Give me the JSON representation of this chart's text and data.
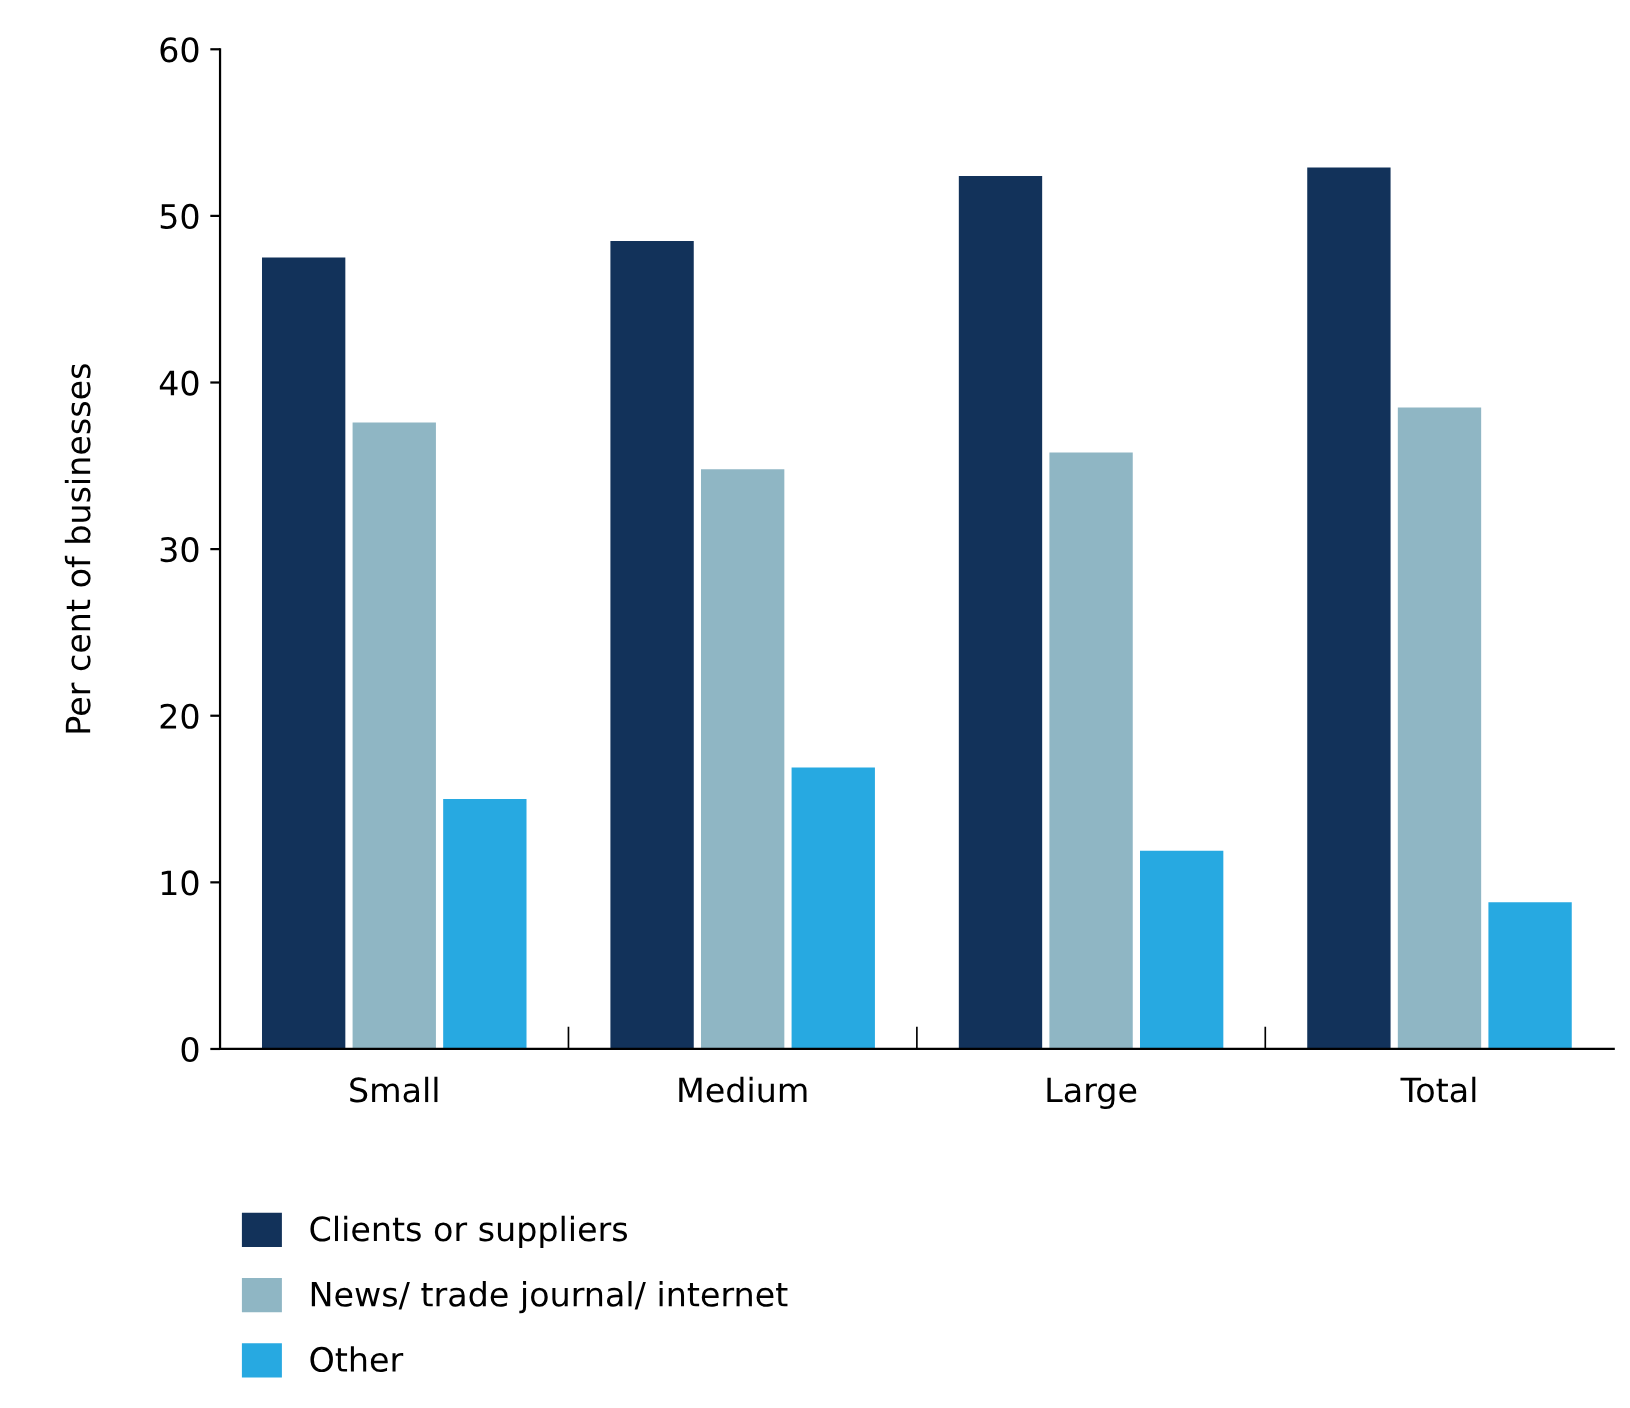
{
  "chart_data": {
    "type": "bar",
    "ylabel": "Per cent of businesses",
    "categories": [
      "Small",
      "Medium",
      "Large",
      "Total"
    ],
    "series": [
      {
        "name": "Clients or suppliers",
        "color": "#12325a",
        "values": [
          47.5,
          48.5,
          52.4,
          52.9
        ]
      },
      {
        "name": "News/ trade journal/ internet",
        "color": "#8fb6c4",
        "values": [
          37.6,
          34.8,
          35.8,
          38.5
        ]
      },
      {
        "name": "Other",
        "color": "#27a9e1",
        "values": [
          15.0,
          16.9,
          11.9,
          8.8
        ]
      }
    ],
    "ylim": [
      0,
      60
    ],
    "yticks": [
      0,
      10,
      20,
      30,
      40,
      50,
      60
    ],
    "grid": false,
    "legend": "bottom"
  }
}
